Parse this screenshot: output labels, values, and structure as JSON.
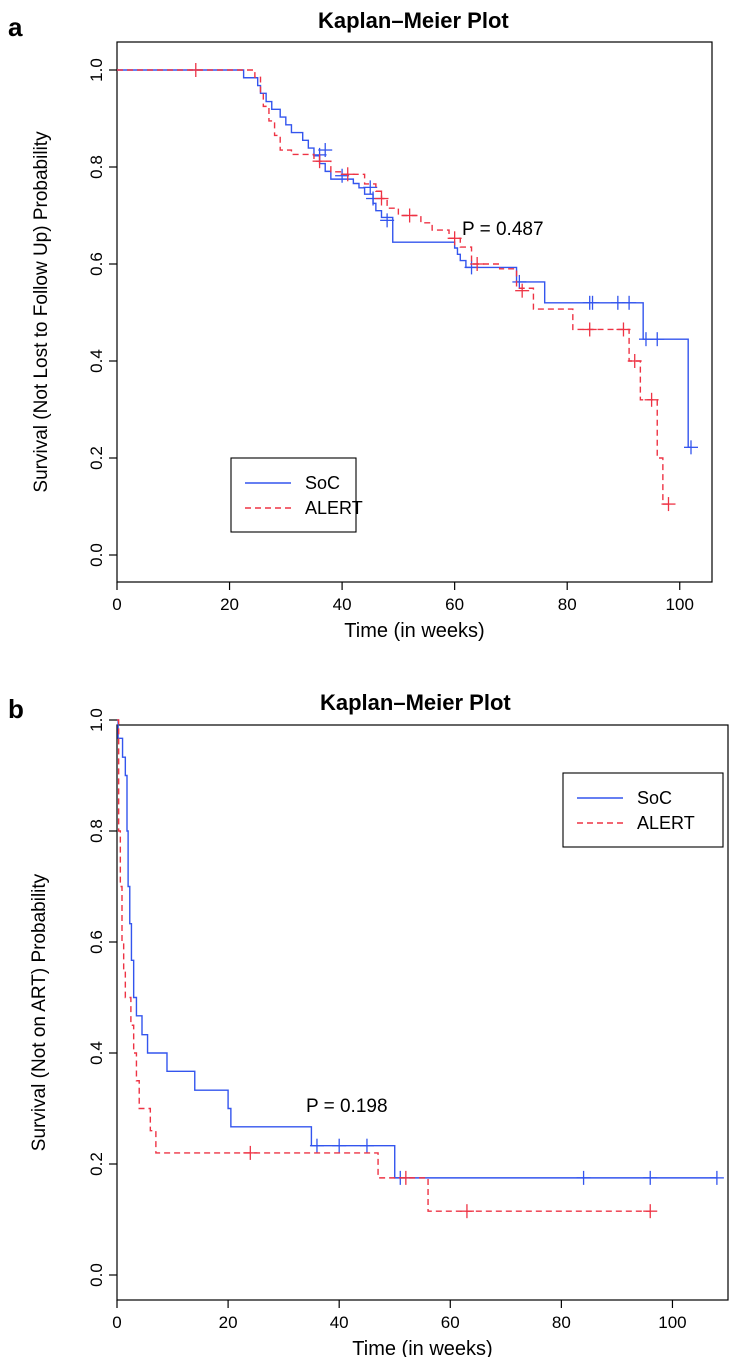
{
  "panels": [
    {
      "letter": "a",
      "title": "Kaplan–Meier Plot"
    },
    {
      "letter": "b",
      "title": "Kaplan–Meier Plot"
    }
  ],
  "chart_data": [
    {
      "type": "line",
      "title": "Kaplan–Meier Plot",
      "xlabel": "Time (in weeks)",
      "ylabel": "Survival (Not Lost to Follow Up) Probability",
      "xlim": [
        0,
        102
      ],
      "ylim": [
        0,
        1
      ],
      "x_ticks": [
        0,
        20,
        40,
        60,
        80,
        100
      ],
      "x_tick_labels": [
        "0",
        "20",
        "40",
        "60",
        "80",
        "100"
      ],
      "y_ticks": [
        0,
        0.2,
        0.4,
        0.6,
        0.8,
        1.0
      ],
      "y_tick_labels": [
        "0.0",
        "0.2",
        "0.4",
        "0.6",
        "0.8",
        "1.0"
      ],
      "annotation": "P = 0.487",
      "legend": {
        "position": "bottom-left",
        "entries": [
          "SoC",
          "ALERT"
        ]
      },
      "series": [
        {
          "name": "SoC",
          "color": "#3355ee",
          "dash": "solid",
          "steps": [
            [
              0,
              1.0
            ],
            [
              22.5,
              0.984
            ],
            [
              25,
              0.968
            ],
            [
              25.5,
              0.952
            ],
            [
              26.5,
              0.935
            ],
            [
              27.5,
              0.919
            ],
            [
              29,
              0.903
            ],
            [
              30,
              0.887
            ],
            [
              31,
              0.871
            ],
            [
              33,
              0.855
            ],
            [
              34,
              0.839
            ],
            [
              35,
              0.823
            ],
            [
              36,
              0.807
            ],
            [
              37,
              0.791
            ],
            [
              38,
              0.775
            ],
            [
              42,
              0.766
            ],
            [
              43,
              0.757
            ],
            [
              44,
              0.744
            ],
            [
              45.5,
              0.725
            ],
            [
              46,
              0.71
            ],
            [
              47,
              0.696
            ],
            [
              49,
              0.645
            ],
            [
              60,
              0.633
            ],
            [
              60.5,
              0.62
            ],
            [
              61,
              0.607
            ],
            [
              62,
              0.593
            ],
            [
              71,
              0.563
            ],
            [
              76,
              0.52
            ],
            [
              93.5,
              0.445
            ],
            [
              101.5,
              0.222
            ],
            [
              102,
              0.222
            ]
          ],
          "censors": [
            [
              36,
              0.825
            ],
            [
              37,
              0.835
            ],
            [
              40,
              0.782
            ],
            [
              45,
              0.758
            ],
            [
              45.5,
              0.735
            ],
            [
              48,
              0.69
            ],
            [
              63,
              0.593
            ],
            [
              71.5,
              0.563
            ],
            [
              84,
              0.52
            ],
            [
              84.5,
              0.52
            ],
            [
              89,
              0.52
            ],
            [
              91,
              0.52
            ],
            [
              94,
              0.445
            ],
            [
              96,
              0.445
            ],
            [
              102,
              0.222
            ]
          ]
        },
        {
          "name": "ALERT",
          "color": "#ee3344",
          "dash": "dashed",
          "steps": [
            [
              0,
              1.0
            ],
            [
              24.5,
              0.985
            ],
            [
              25.5,
              0.955
            ],
            [
              26,
              0.925
            ],
            [
              27,
              0.895
            ],
            [
              28,
              0.865
            ],
            [
              29,
              0.835
            ],
            [
              31,
              0.826
            ],
            [
              35,
              0.812
            ],
            [
              38,
              0.79
            ],
            [
              40,
              0.785
            ],
            [
              44,
              0.765
            ],
            [
              46,
              0.75
            ],
            [
              47,
              0.735
            ],
            [
              48,
              0.715
            ],
            [
              50,
              0.7
            ],
            [
              54,
              0.685
            ],
            [
              56,
              0.67
            ],
            [
              59,
              0.653
            ],
            [
              61,
              0.635
            ],
            [
              63,
              0.6
            ],
            [
              68,
              0.59
            ],
            [
              71,
              0.55
            ],
            [
              74,
              0.507
            ],
            [
              81,
              0.465
            ],
            [
              91,
              0.4
            ],
            [
              93,
              0.32
            ],
            [
              96,
              0.2
            ],
            [
              97,
              0.105
            ],
            [
              98,
              0.105
            ]
          ],
          "censors": [
            [
              14,
              1.0
            ],
            [
              36,
              0.812
            ],
            [
              41,
              0.785
            ],
            [
              47,
              0.735
            ],
            [
              52,
              0.7
            ],
            [
              60,
              0.653
            ],
            [
              64,
              0.6
            ],
            [
              72,
              0.545
            ],
            [
              84,
              0.465
            ],
            [
              90,
              0.465
            ],
            [
              92,
              0.4
            ],
            [
              95,
              0.32
            ],
            [
              98,
              0.105
            ]
          ]
        }
      ]
    },
    {
      "type": "line",
      "title": "Kaplan–Meier Plot",
      "xlabel": "Time (in weeks)",
      "ylabel": "Survival (Not on ART) Probability",
      "xlim": [
        0,
        110
      ],
      "ylim": [
        0,
        1
      ],
      "x_ticks": [
        0,
        20,
        40,
        60,
        80,
        100
      ],
      "x_tick_labels": [
        "0",
        "20",
        "40",
        "60",
        "80",
        "100"
      ],
      "y_ticks": [
        0,
        0.2,
        0.4,
        0.6,
        0.8,
        1.0
      ],
      "y_tick_labels": [
        "0.0",
        "0.2",
        "0.4",
        "0.6",
        "0.8",
        "1.0"
      ],
      "annotation": "P = 0.198",
      "legend": {
        "position": "top-right",
        "entries": [
          "SoC",
          "ALERT"
        ]
      },
      "series": [
        {
          "name": "SoC",
          "color": "#3355ee",
          "dash": "solid",
          "steps": [
            [
              0,
              1.0
            ],
            [
              0.2,
              0.967
            ],
            [
              1,
              0.933
            ],
            [
              1.5,
              0.9
            ],
            [
              1.8,
              0.8
            ],
            [
              2,
              0.7
            ],
            [
              2.3,
              0.633
            ],
            [
              2.6,
              0.567
            ],
            [
              3,
              0.5
            ],
            [
              3.5,
              0.467
            ],
            [
              4.5,
              0.433
            ],
            [
              5.5,
              0.4
            ],
            [
              9,
              0.367
            ],
            [
              14,
              0.333
            ],
            [
              20,
              0.3
            ],
            [
              20.5,
              0.267
            ],
            [
              35,
              0.233
            ],
            [
              50,
              0.175
            ],
            [
              108,
              0.175
            ]
          ],
          "censors": [
            [
              36,
              0.233
            ],
            [
              40,
              0.233
            ],
            [
              45,
              0.233
            ],
            [
              51,
              0.175
            ],
            [
              84,
              0.175
            ],
            [
              96,
              0.175
            ],
            [
              108,
              0.175
            ]
          ]
        },
        {
          "name": "ALERT",
          "color": "#ee3344",
          "dash": "dashed",
          "steps": [
            [
              0,
              1.0
            ],
            [
              0.3,
              0.8
            ],
            [
              0.6,
              0.7
            ],
            [
              0.9,
              0.6
            ],
            [
              1.2,
              0.55
            ],
            [
              1.5,
              0.5
            ],
            [
              2.5,
              0.45
            ],
            [
              3,
              0.4
            ],
            [
              3.5,
              0.35
            ],
            [
              4,
              0.3
            ],
            [
              6,
              0.26
            ],
            [
              7,
              0.22
            ],
            [
              47,
              0.175
            ],
            [
              56,
              0.115
            ],
            [
              96,
              0.115
            ]
          ],
          "censors": [
            [
              24,
              0.22
            ],
            [
              52,
              0.175
            ],
            [
              63,
              0.115
            ],
            [
              96,
              0.115
            ]
          ]
        }
      ]
    }
  ]
}
